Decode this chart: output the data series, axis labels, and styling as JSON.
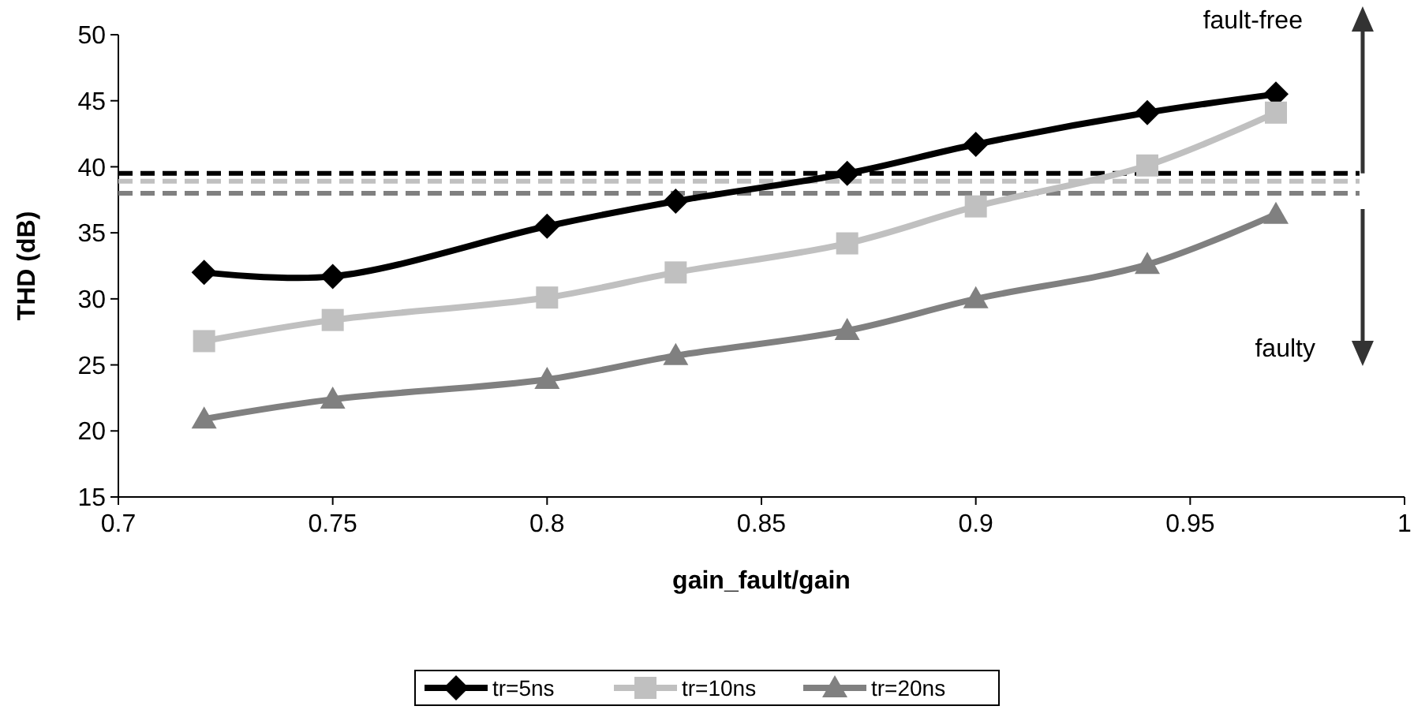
{
  "chart_data": {
    "type": "line",
    "xlabel": "gain_fault/gain",
    "ylabel": "THD (dB)",
    "x": [
      0.72,
      0.75,
      0.8,
      0.83,
      0.87,
      0.9,
      0.94,
      0.97
    ],
    "series": [
      {
        "name": "tr=5ns",
        "color": "#000000",
        "marker": "diamond",
        "values": [
          32.0,
          31.7,
          35.5,
          37.4,
          39.5,
          41.7,
          44.1,
          45.5
        ]
      },
      {
        "name": "tr=10ns",
        "color": "#c0c0c0",
        "marker": "square",
        "values": [
          26.8,
          28.4,
          30.1,
          32.0,
          34.2,
          37.0,
          40.1,
          44.1
        ]
      },
      {
        "name": "tr=20ns",
        "color": "#808080",
        "marker": "triangle",
        "values": [
          20.9,
          22.4,
          23.9,
          25.7,
          27.6,
          30.0,
          32.6,
          36.4
        ]
      }
    ],
    "xlim": [
      0.7,
      1
    ],
    "xticks": [
      0.7,
      0.75,
      0.8,
      0.85,
      0.9,
      0.95,
      1
    ],
    "ylim": [
      15,
      50
    ],
    "yticks": [
      15,
      20,
      25,
      30,
      35,
      40,
      45,
      50
    ],
    "ref_lines": [
      {
        "axis": "y",
        "value": 39.5,
        "color": "#000000",
        "line_style": "dashed"
      },
      {
        "axis": "y",
        "value": 38.9,
        "color": "#c0c0c0",
        "line_style": "dashed"
      },
      {
        "axis": "y",
        "value": 38.0,
        "color": "#808080",
        "line_style": "dashed"
      }
    ],
    "annotations": [
      "fault-free",
      "faulty"
    ],
    "legend": "bottom",
    "line_style": "solid",
    "grid": false
  }
}
